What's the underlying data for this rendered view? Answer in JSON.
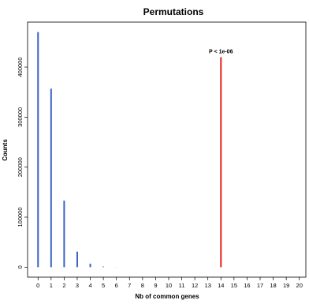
{
  "chart_data": {
    "type": "bar",
    "title": "Permutations",
    "xlabel": "Nb of common genes",
    "ylabel": "Counts",
    "x_ticks": [
      0,
      1,
      2,
      3,
      4,
      5,
      6,
      7,
      8,
      9,
      10,
      11,
      12,
      13,
      14,
      15,
      16,
      17,
      18,
      19,
      20
    ],
    "y_ticks": [
      0,
      100000,
      200000,
      300000,
      400000
    ],
    "xlim": [
      -0.8,
      20.5
    ],
    "ylim": [
      -20000,
      490000
    ],
    "series": [
      {
        "x": [
          0,
          1,
          2,
          3,
          4,
          5,
          6,
          7,
          8
        ],
        "values": [
          470000,
          357000,
          133000,
          31000,
          7000,
          1200,
          250,
          60,
          10
        ],
        "color": "#3a64c4"
      }
    ],
    "observed": {
      "x": 14,
      "value": 420000,
      "color": "#e8241d"
    },
    "annotation": {
      "text": "P <  1e-06",
      "x": 14
    },
    "grid": false
  }
}
